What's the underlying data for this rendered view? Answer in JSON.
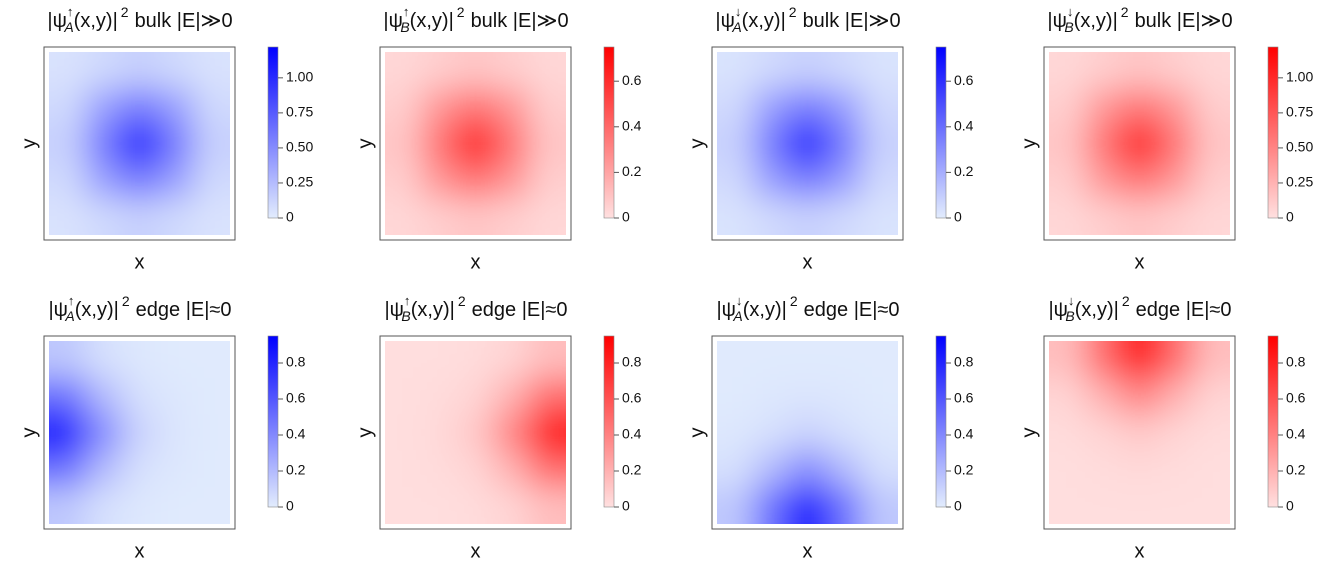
{
  "chart_data": [
    {
      "type": "heatmap",
      "title": [
        "|ψ",
        "↑",
        "A",
        "(x,y)",
        "|",
        "2",
        "bulk |E|≫0"
      ],
      "xlabel": "x",
      "ylabel": "y",
      "z": [
        [
          0.05,
          0.1,
          0.15,
          0.1,
          0.05
        ],
        [
          0.1,
          0.4,
          0.6,
          0.4,
          0.1
        ],
        [
          0.15,
          0.6,
          1.2,
          0.6,
          0.15
        ],
        [
          0.1,
          0.4,
          0.6,
          0.4,
          0.1
        ],
        [
          0.05,
          0.1,
          0.15,
          0.1,
          0.05
        ]
      ],
      "clim": [
        0,
        1.22
      ],
      "colormap": [
        "#e2ecfd",
        "#0000ff"
      ],
      "cticks": [
        0,
        0.25,
        {
          "value": 0.5,
          "label": "0.50"
        },
        0.75,
        {
          "value": 1,
          "label": "1.00"
        }
      ]
    },
    {
      "type": "heatmap",
      "title": [
        "|ψ",
        "↑",
        "B",
        "(x,y)",
        "|",
        "2",
        "bulk |E|≫0"
      ],
      "xlabel": "x",
      "ylabel": "y",
      "z": [
        [
          0.03,
          0.06,
          0.09,
          0.06,
          0.03
        ],
        [
          0.06,
          0.25,
          0.37,
          0.25,
          0.06
        ],
        [
          0.09,
          0.37,
          0.74,
          0.37,
          0.09
        ],
        [
          0.06,
          0.25,
          0.37,
          0.25,
          0.06
        ],
        [
          0.03,
          0.06,
          0.09,
          0.06,
          0.03
        ]
      ],
      "clim": [
        0,
        0.75
      ],
      "colormap": [
        "#ffe0e0",
        "#ff0000"
      ],
      "cticks": [
        0,
        0.2,
        0.4,
        0.6
      ]
    },
    {
      "type": "heatmap",
      "title": [
        "|ψ",
        "↓",
        "A",
        "(x,y)",
        "|",
        "2",
        "bulk |E|≫0"
      ],
      "xlabel": "x",
      "ylabel": "y",
      "z": [
        [
          0.03,
          0.06,
          0.09,
          0.06,
          0.03
        ],
        [
          0.06,
          0.25,
          0.37,
          0.25,
          0.06
        ],
        [
          0.09,
          0.37,
          0.74,
          0.37,
          0.09
        ],
        [
          0.06,
          0.25,
          0.37,
          0.25,
          0.06
        ],
        [
          0.03,
          0.06,
          0.09,
          0.06,
          0.03
        ]
      ],
      "clim": [
        0,
        0.75
      ],
      "colormap": [
        "#e2ecfd",
        "#0000ff"
      ],
      "cticks": [
        0,
        0.2,
        0.4,
        0.6
      ]
    },
    {
      "type": "heatmap",
      "title": [
        "|ψ",
        "↓",
        "B",
        "(x,y)",
        "|",
        "2",
        "bulk |E|≫0"
      ],
      "xlabel": "x",
      "ylabel": "y",
      "z": [
        [
          0.05,
          0.1,
          0.15,
          0.1,
          0.05
        ],
        [
          0.1,
          0.4,
          0.6,
          0.4,
          0.1
        ],
        [
          0.15,
          0.6,
          1.2,
          0.6,
          0.15
        ],
        [
          0.1,
          0.4,
          0.6,
          0.4,
          0.1
        ],
        [
          0.05,
          0.1,
          0.15,
          0.1,
          0.05
        ]
      ],
      "clim": [
        0,
        1.22
      ],
      "colormap": [
        "#ffe0e0",
        "#ff0000"
      ],
      "cticks": [
        0,
        0.25,
        {
          "value": 0.5,
          "label": "0.50"
        },
        0.75,
        {
          "value": 1,
          "label": "1.00"
        }
      ]
    },
    {
      "type": "heatmap",
      "title": [
        "|ψ",
        "↑",
        "A",
        "(x,y)",
        "|",
        "2",
        "edge |E|≈0"
      ],
      "xlabel": "x",
      "ylabel": "y",
      "z": [
        [
          0.15,
          0.05,
          0.02,
          0.01,
          0.01
        ],
        [
          0.5,
          0.2,
          0.05,
          0.02,
          0.01
        ],
        [
          0.93,
          0.4,
          0.1,
          0.03,
          0.01
        ],
        [
          0.5,
          0.2,
          0.05,
          0.02,
          0.01
        ],
        [
          0.15,
          0.05,
          0.02,
          0.01,
          0.01
        ]
      ],
      "clim": [
        0,
        0.95
      ],
      "colormap": [
        "#e2ecfd",
        "#0000ff"
      ],
      "cticks": [
        0,
        0.2,
        0.4,
        0.6,
        0.8
      ]
    },
    {
      "type": "heatmap",
      "title": [
        "|ψ",
        "↑",
        "B",
        "(x,y)",
        "|",
        "2",
        "edge |E|≈0"
      ],
      "xlabel": "x",
      "ylabel": "y",
      "z": [
        [
          0.01,
          0.01,
          0.02,
          0.05,
          0.15
        ],
        [
          0.01,
          0.02,
          0.05,
          0.2,
          0.5
        ],
        [
          0.01,
          0.03,
          0.1,
          0.4,
          0.93
        ],
        [
          0.01,
          0.02,
          0.05,
          0.2,
          0.5
        ],
        [
          0.01,
          0.01,
          0.02,
          0.05,
          0.15
        ]
      ],
      "clim": [
        0,
        0.95
      ],
      "colormap": [
        "#ffe0e0",
        "#ff0000"
      ],
      "cticks": [
        0,
        0.2,
        0.4,
        0.6,
        0.8
      ]
    },
    {
      "type": "heatmap",
      "title": [
        "|ψ",
        "↓",
        "A",
        "(x,y)",
        "|",
        "2",
        "edge |E|≈0"
      ],
      "xlabel": "x",
      "ylabel": "y",
      "z": [
        [
          0.01,
          0.01,
          0.01,
          0.01,
          0.01
        ],
        [
          0.01,
          0.02,
          0.03,
          0.02,
          0.01
        ],
        [
          0.02,
          0.05,
          0.1,
          0.05,
          0.02
        ],
        [
          0.05,
          0.2,
          0.4,
          0.2,
          0.05
        ],
        [
          0.15,
          0.5,
          0.93,
          0.5,
          0.15
        ]
      ],
      "clim": [
        0,
        0.95
      ],
      "colormap": [
        "#e2ecfd",
        "#0000ff"
      ],
      "cticks": [
        0,
        0.2,
        0.4,
        0.6,
        0.8
      ]
    },
    {
      "type": "heatmap",
      "title": [
        "|ψ",
        "↓",
        "B",
        "(x,y)",
        "|",
        "2",
        "edge |E|≈0"
      ],
      "xlabel": "x",
      "ylabel": "y",
      "z": [
        [
          0.15,
          0.5,
          0.93,
          0.5,
          0.15
        ],
        [
          0.05,
          0.2,
          0.4,
          0.2,
          0.05
        ],
        [
          0.02,
          0.05,
          0.1,
          0.05,
          0.02
        ],
        [
          0.01,
          0.02,
          0.03,
          0.02,
          0.01
        ],
        [
          0.01,
          0.01,
          0.01,
          0.01,
          0.01
        ]
      ],
      "clim": [
        0,
        0.95
      ],
      "colormap": [
        "#ffe0e0",
        "#ff0000"
      ],
      "cticks": [
        0,
        0.2,
        0.4,
        0.6,
        0.8
      ]
    }
  ]
}
